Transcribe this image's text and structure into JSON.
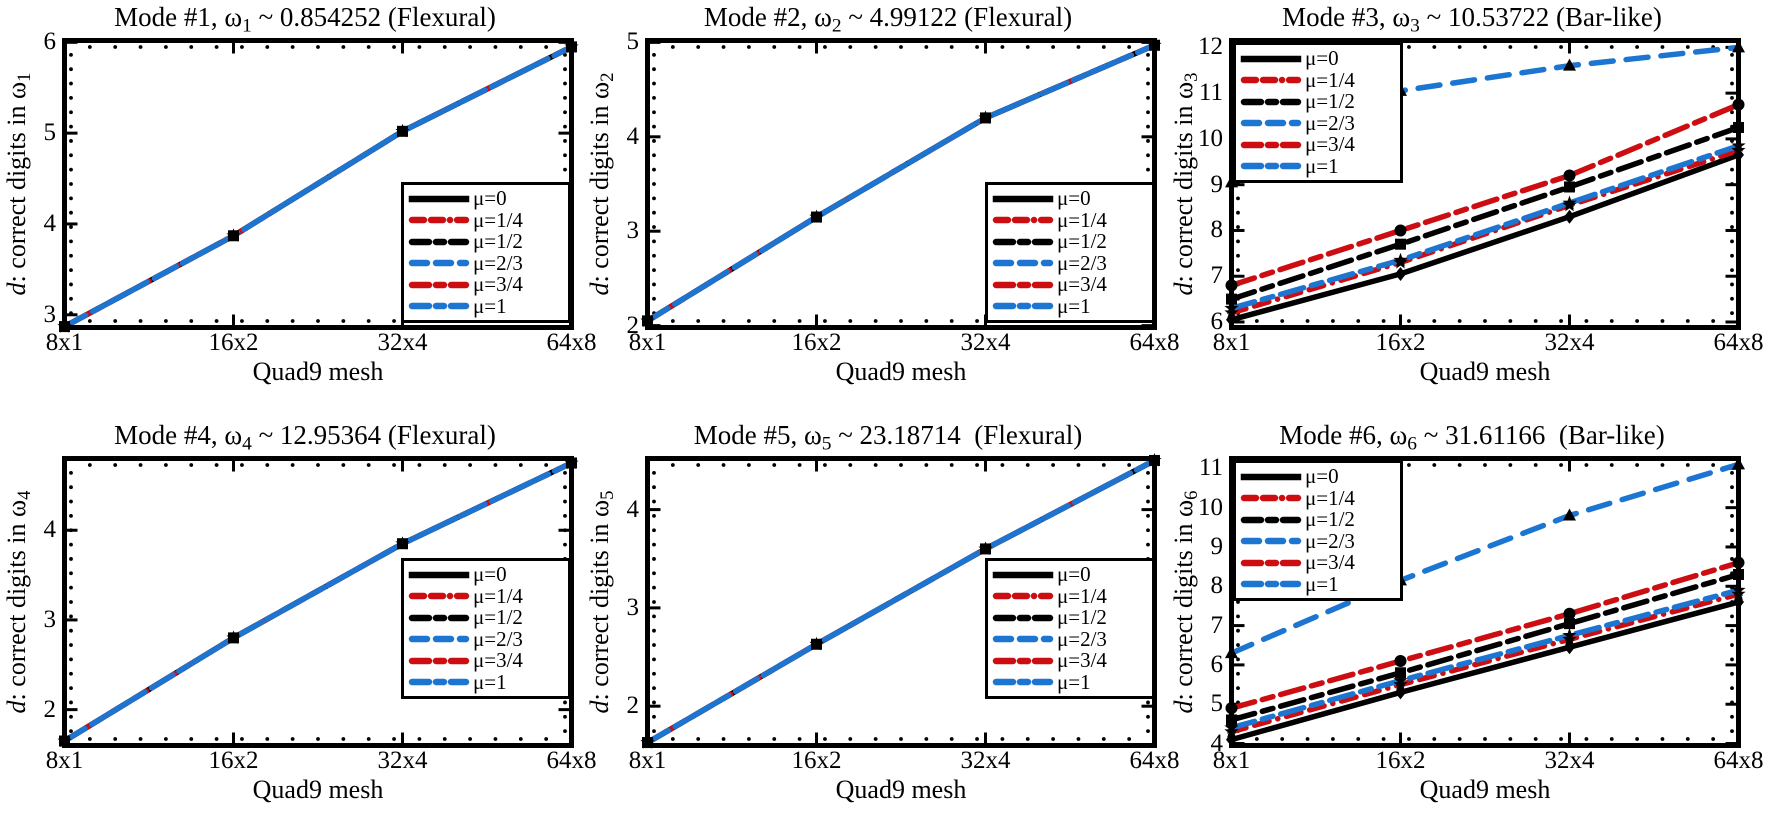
{
  "shared": {
    "xlabel": "Quad9 mesh",
    "legend_labels": [
      "μ=0",
      "μ=1/4",
      "μ=1/2",
      "μ=2/3",
      "μ=3/4",
      "μ=1"
    ]
  },
  "colors": {
    "black": "#000000",
    "red": "#cc0e12",
    "blue": "#1b75d1"
  },
  "series_styles": [
    {
      "label": "μ=0",
      "color": "#000000",
      "pattern": "solid",
      "marker": "diamond"
    },
    {
      "label": "μ=1/4",
      "color": "#cc0e12",
      "pattern": "dash-dash-dot",
      "marker": "star"
    },
    {
      "label": "μ=1/2",
      "color": "#000000",
      "pattern": "long-short-dash",
      "marker": "square"
    },
    {
      "label": "μ=2/3",
      "color": "#1b75d1",
      "pattern": "dashed",
      "marker": "triangle"
    },
    {
      "label": "μ=3/4",
      "color": "#cc0e12",
      "pattern": "long-short-dash",
      "marker": "circle"
    },
    {
      "label": "μ=1",
      "color": "#1b75d1",
      "pattern": "long-short-dash",
      "marker": "star"
    }
  ],
  "chart_data": [
    {
      "id": "mode-1",
      "type": "line",
      "title": {
        "pre": "Mode #1, ω",
        "sub": "1",
        "post": " ~ 0.854252 (Flexural)"
      },
      "ylabel": {
        "it": "d",
        "pre": ": correct digits in ω",
        "sub": "1"
      },
      "x_categories": [
        "8x1",
        "16x2",
        "32x4",
        "64x8"
      ],
      "yticks": [
        3,
        4,
        5,
        6
      ],
      "ylim": [
        2.86,
        6.02
      ],
      "collapsed": true,
      "legend_position": "bottom-right",
      "series": [
        {
          "name": "μ=0",
          "values": [
            2.87,
            3.87,
            5.02,
            5.95
          ]
        },
        {
          "name": "μ=1/4",
          "values": [
            2.87,
            3.87,
            5.02,
            5.95
          ]
        },
        {
          "name": "μ=1/2",
          "values": [
            2.87,
            3.87,
            5.02,
            5.95
          ]
        },
        {
          "name": "μ=2/3",
          "values": [
            2.87,
            3.87,
            5.02,
            5.95
          ]
        },
        {
          "name": "μ=3/4",
          "values": [
            2.87,
            3.87,
            5.02,
            5.95
          ]
        },
        {
          "name": "μ=1",
          "values": [
            2.87,
            3.87,
            5.02,
            5.95
          ]
        }
      ]
    },
    {
      "id": "mode-2",
      "type": "line",
      "title": {
        "pre": "Mode #2, ω",
        "sub": "2",
        "post": " ~ 4.99122 (Flexural)"
      },
      "ylabel": {
        "it": "d",
        "pre": ": correct digits in ω",
        "sub": "2"
      },
      "x_categories": [
        "8x1",
        "16x2",
        "32x4",
        "64x8"
      ],
      "yticks": [
        2,
        3,
        4,
        5
      ],
      "ylim": [
        1.98,
        5.02
      ],
      "collapsed": true,
      "legend_position": "bottom-right",
      "series": [
        {
          "name": "μ=0",
          "values": [
            2.05,
            3.15,
            4.2,
            4.97
          ]
        },
        {
          "name": "μ=1/4",
          "values": [
            2.05,
            3.15,
            4.2,
            4.97
          ]
        },
        {
          "name": "μ=1/2",
          "values": [
            2.05,
            3.15,
            4.2,
            4.97
          ]
        },
        {
          "name": "μ=2/3",
          "values": [
            2.05,
            3.15,
            4.2,
            4.97
          ]
        },
        {
          "name": "μ=3/4",
          "values": [
            2.05,
            3.15,
            4.2,
            4.97
          ]
        },
        {
          "name": "μ=1",
          "values": [
            2.05,
            3.15,
            4.2,
            4.97
          ]
        }
      ]
    },
    {
      "id": "mode-3",
      "type": "line",
      "title": {
        "pre": "Mode #3, ω",
        "sub": "3",
        "post": " ~ 10.53722 (Bar-like)"
      },
      "ylabel": {
        "it": "d",
        "pre": ": correct digits in ω",
        "sub": "3"
      },
      "x_categories": [
        "8x1",
        "16x2",
        "32x4",
        "64x8"
      ],
      "yticks": [
        6,
        7,
        8,
        9,
        10,
        11,
        12
      ],
      "ylim": [
        5.88,
        12.15
      ],
      "collapsed": false,
      "legend_position": "top-left",
      "series": [
        {
          "name": "μ=0",
          "values": [
            6.05,
            7.05,
            8.3,
            9.65
          ]
        },
        {
          "name": "μ=1/4",
          "values": [
            6.2,
            7.3,
            8.55,
            9.75
          ]
        },
        {
          "name": "μ=1/2",
          "values": [
            6.5,
            7.7,
            8.95,
            10.25
          ]
        },
        {
          "name": "μ=2/3",
          "values": [
            9.05,
            11.05,
            11.6,
            12.0
          ]
        },
        {
          "name": "μ=3/4",
          "values": [
            6.8,
            8.0,
            9.2,
            10.75
          ]
        },
        {
          "name": "μ=1",
          "values": [
            6.3,
            7.35,
            8.6,
            9.85
          ]
        }
      ]
    },
    {
      "id": "mode-4",
      "type": "line",
      "title": {
        "pre": "Mode #4, ω",
        "sub": "4",
        "post": " ~ 12.95364 (Flexural)"
      },
      "ylabel": {
        "it": "d",
        "pre": ": correct digits in ω",
        "sub": "4"
      },
      "x_categories": [
        "8x1",
        "16x2",
        "32x4",
        "64x8"
      ],
      "yticks": [
        2,
        3,
        4
      ],
      "ylim": [
        1.6,
        4.8
      ],
      "collapsed": true,
      "legend_position": "bottom-right-raised",
      "series": [
        {
          "name": "μ=0",
          "values": [
            1.65,
            2.8,
            3.85,
            4.75
          ]
        },
        {
          "name": "μ=1/4",
          "values": [
            1.65,
            2.8,
            3.85,
            4.75
          ]
        },
        {
          "name": "μ=1/2",
          "values": [
            1.65,
            2.8,
            3.85,
            4.75
          ]
        },
        {
          "name": "μ=2/3",
          "values": [
            1.65,
            2.8,
            3.85,
            4.75
          ]
        },
        {
          "name": "μ=3/4",
          "values": [
            1.65,
            2.8,
            3.85,
            4.75
          ]
        },
        {
          "name": "μ=1",
          "values": [
            1.65,
            2.8,
            3.85,
            4.75
          ]
        }
      ]
    },
    {
      "id": "mode-5",
      "type": "line",
      "title": {
        "pre": "Mode #5, ω",
        "sub": "5",
        "post": " ~ 23.18714  (Flexural)"
      },
      "ylabel": {
        "it": "d",
        "pre": ": correct digits in ω",
        "sub": "5"
      },
      "x_categories": [
        "8x1",
        "16x2",
        "32x4",
        "64x8"
      ],
      "yticks": [
        2,
        3,
        4
      ],
      "ylim": [
        1.6,
        4.52
      ],
      "collapsed": true,
      "legend_position": "bottom-right-raised",
      "series": [
        {
          "name": "μ=0",
          "values": [
            1.63,
            2.63,
            3.6,
            4.5
          ]
        },
        {
          "name": "μ=1/4",
          "values": [
            1.63,
            2.63,
            3.6,
            4.5
          ]
        },
        {
          "name": "μ=1/2",
          "values": [
            1.63,
            2.63,
            3.6,
            4.5
          ]
        },
        {
          "name": "μ=2/3",
          "values": [
            1.63,
            2.63,
            3.6,
            4.5
          ]
        },
        {
          "name": "μ=3/4",
          "values": [
            1.63,
            2.63,
            3.6,
            4.5
          ]
        },
        {
          "name": "μ=1",
          "values": [
            1.63,
            2.63,
            3.6,
            4.5
          ]
        }
      ]
    },
    {
      "id": "mode-6",
      "type": "line",
      "title": {
        "pre": "Mode #6, ω",
        "sub": "6",
        "post": " ~ 31.61166  (Bar-like)"
      },
      "ylabel": {
        "it": "d",
        "pre": ": correct digits in ω",
        "sub": "6"
      },
      "x_categories": [
        "8x1",
        "16x2",
        "32x4",
        "64x8"
      ],
      "yticks": [
        4,
        5,
        6,
        7,
        8,
        9,
        10,
        11
      ],
      "ylim": [
        3.95,
        11.25
      ],
      "collapsed": false,
      "legend_position": "top-left",
      "series": [
        {
          "name": "μ=0",
          "values": [
            4.1,
            5.3,
            6.45,
            7.6
          ]
        },
        {
          "name": "μ=1/4",
          "values": [
            4.3,
            5.5,
            6.65,
            7.8
          ]
        },
        {
          "name": "μ=1/2",
          "values": [
            4.6,
            5.8,
            7.05,
            8.3
          ]
        },
        {
          "name": "μ=2/3",
          "values": [
            6.3,
            8.15,
            9.8,
            11.1
          ]
        },
        {
          "name": "μ=3/4",
          "values": [
            4.9,
            6.1,
            7.3,
            8.6
          ]
        },
        {
          "name": "μ=1",
          "values": [
            4.4,
            5.6,
            6.75,
            7.9
          ]
        }
      ]
    }
  ]
}
